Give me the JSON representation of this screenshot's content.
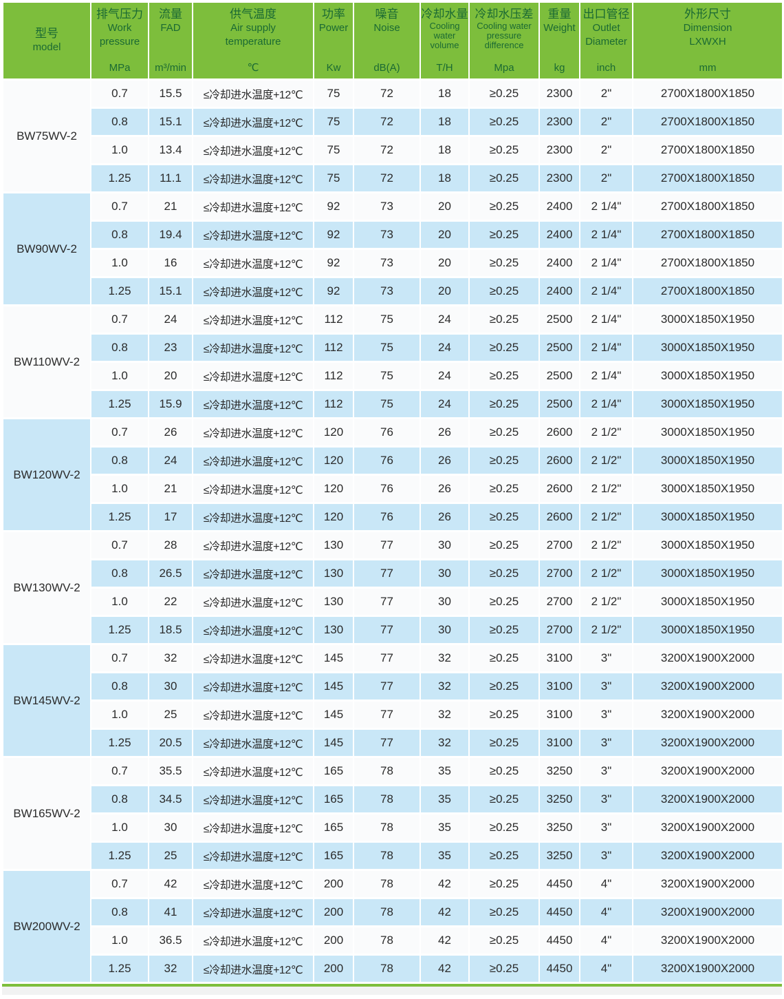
{
  "table": {
    "columns": [
      {
        "zh": "型号",
        "en": [
          "model"
        ],
        "unit": ""
      },
      {
        "zh": "排气压力",
        "en": [
          "Work",
          "pressure"
        ],
        "unit": "MPa"
      },
      {
        "zh": "流量",
        "en": [
          "FAD"
        ],
        "unit": "m³/min"
      },
      {
        "zh": "供气温度",
        "en": [
          "Air supply",
          "temperature"
        ],
        "unit": "℃"
      },
      {
        "zh": "功率",
        "en": [
          "Power"
        ],
        "unit": "Kw"
      },
      {
        "zh": "噪音",
        "en": [
          "Noise"
        ],
        "unit": "dB(A)"
      },
      {
        "zh": "冷却水量",
        "en": [
          "Cooling",
          "water",
          "volume"
        ],
        "unit": "T/H",
        "small": true
      },
      {
        "zh": "冷却水压差",
        "en": [
          "Cooling water",
          "pressure",
          "difference"
        ],
        "unit": "Mpa",
        "small": true
      },
      {
        "zh": "重量",
        "en": [
          "Weight"
        ],
        "unit": "kg"
      },
      {
        "zh": "出口管径",
        "en": [
          "Outlet",
          "Diameter"
        ],
        "unit": "inch"
      },
      {
        "zh": "外形尺寸",
        "en": [
          "Dimension",
          "LXWXH"
        ],
        "unit": "mm"
      }
    ],
    "groups": [
      {
        "model": "BW75WV-2",
        "rows": [
          [
            "0.7",
            "15.5",
            "≤冷却进水温度+12℃",
            "75",
            "72",
            "18",
            "≥0.25",
            "2300",
            "2\"",
            "2700X1800X1850"
          ],
          [
            "0.8",
            "15.1",
            "≤冷却进水温度+12℃",
            "75",
            "72",
            "18",
            "≥0.25",
            "2300",
            "2\"",
            "2700X1800X1850"
          ],
          [
            "1.0",
            "13.4",
            "≤冷却进水温度+12℃",
            "75",
            "72",
            "18",
            "≥0.25",
            "2300",
            "2\"",
            "2700X1800X1850"
          ],
          [
            "1.25",
            "11.1",
            "≤冷却进水温度+12℃",
            "75",
            "72",
            "18",
            "≥0.25",
            "2300",
            "2\"",
            "2700X1800X1850"
          ]
        ]
      },
      {
        "model": "BW90WV-2",
        "rows": [
          [
            "0.7",
            "21",
            "≤冷却进水温度+12℃",
            "92",
            "73",
            "20",
            "≥0.25",
            "2400",
            "2 1/4\"",
            "2700X1800X1850"
          ],
          [
            "0.8",
            "19.4",
            "≤冷却进水温度+12℃",
            "92",
            "73",
            "20",
            "≥0.25",
            "2400",
            "2 1/4\"",
            "2700X1800X1850"
          ],
          [
            "1.0",
            "16",
            "≤冷却进水温度+12℃",
            "92",
            "73",
            "20",
            "≥0.25",
            "2400",
            "2 1/4\"",
            "2700X1800X1850"
          ],
          [
            "1.25",
            "15.1",
            "≤冷却进水温度+12℃",
            "92",
            "73",
            "20",
            "≥0.25",
            "2400",
            "2 1/4\"",
            "2700X1800X1850"
          ]
        ]
      },
      {
        "model": "BW110WV-2",
        "rows": [
          [
            "0.7",
            "24",
            "≤冷却进水温度+12℃",
            "112",
            "75",
            "24",
            "≥0.25",
            "2500",
            "2 1/4\"",
            "3000X1850X1950"
          ],
          [
            "0.8",
            "23",
            "≤冷却进水温度+12℃",
            "112",
            "75",
            "24",
            "≥0.25",
            "2500",
            "2 1/4\"",
            "3000X1850X1950"
          ],
          [
            "1.0",
            "20",
            "≤冷却进水温度+12℃",
            "112",
            "75",
            "24",
            "≥0.25",
            "2500",
            "2 1/4\"",
            "3000X1850X1950"
          ],
          [
            "1.25",
            "15.9",
            "≤冷却进水温度+12℃",
            "112",
            "75",
            "24",
            "≥0.25",
            "2500",
            "2 1/4\"",
            "3000X1850X1950"
          ]
        ]
      },
      {
        "model": "BW120WV-2",
        "rows": [
          [
            "0.7",
            "26",
            "≤冷却进水温度+12℃",
            "120",
            "76",
            "26",
            "≥0.25",
            "2600",
            "2 1/2\"",
            "3000X1850X1950"
          ],
          [
            "0.8",
            "24",
            "≤冷却进水温度+12℃",
            "120",
            "76",
            "26",
            "≥0.25",
            "2600",
            "2 1/2\"",
            "3000X1850X1950"
          ],
          [
            "1.0",
            "21",
            "≤冷却进水温度+12℃",
            "120",
            "76",
            "26",
            "≥0.25",
            "2600",
            "2 1/2\"",
            "3000X1850X1950"
          ],
          [
            "1.25",
            "17",
            "≤冷却进水温度+12℃",
            "120",
            "76",
            "26",
            "≥0.25",
            "2600",
            "2 1/2\"",
            "3000X1850X1950"
          ]
        ]
      },
      {
        "model": "BW130WV-2",
        "rows": [
          [
            "0.7",
            "28",
            "≤冷却进水温度+12℃",
            "130",
            "77",
            "30",
            "≥0.25",
            "2700",
            "2 1/2\"",
            "3000X1850X1950"
          ],
          [
            "0.8",
            "26.5",
            "≤冷却进水温度+12℃",
            "130",
            "77",
            "30",
            "≥0.25",
            "2700",
            "2 1/2\"",
            "3000X1850X1950"
          ],
          [
            "1.0",
            "22",
            "≤冷却进水温度+12℃",
            "130",
            "77",
            "30",
            "≥0.25",
            "2700",
            "2 1/2\"",
            "3000X1850X1950"
          ],
          [
            "1.25",
            "18.5",
            "≤冷却进水温度+12℃",
            "130",
            "77",
            "30",
            "≥0.25",
            "2700",
            "2 1/2\"",
            "3000X1850X1950"
          ]
        ]
      },
      {
        "model": "BW145WV-2",
        "rows": [
          [
            "0.7",
            "32",
            "≤冷却进水温度+12℃",
            "145",
            "77",
            "32",
            "≥0.25",
            "3100",
            "3\"",
            "3200X1900X2000"
          ],
          [
            "0.8",
            "30",
            "≤冷却进水温度+12℃",
            "145",
            "77",
            "32",
            "≥0.25",
            "3100",
            "3\"",
            "3200X1900X2000"
          ],
          [
            "1.0",
            "25",
            "≤冷却进水温度+12℃",
            "145",
            "77",
            "32",
            "≥0.25",
            "3100",
            "3\"",
            "3200X1900X2000"
          ],
          [
            "1.25",
            "20.5",
            "≤冷却进水温度+12℃",
            "145",
            "77",
            "32",
            "≥0.25",
            "3100",
            "3\"",
            "3200X1900X2000"
          ]
        ]
      },
      {
        "model": "BW165WV-2",
        "rows": [
          [
            "0.7",
            "35.5",
            "≤冷却进水温度+12℃",
            "165",
            "78",
            "35",
            "≥0.25",
            "3250",
            "3\"",
            "3200X1900X2000"
          ],
          [
            "0.8",
            "34.5",
            "≤冷却进水温度+12℃",
            "165",
            "78",
            "35",
            "≥0.25",
            "3250",
            "3\"",
            "3200X1900X2000"
          ],
          [
            "1.0",
            "30",
            "≤冷却进水温度+12℃",
            "165",
            "78",
            "35",
            "≥0.25",
            "3250",
            "3\"",
            "3200X1900X2000"
          ],
          [
            "1.25",
            "25",
            "≤冷却进水温度+12℃",
            "165",
            "78",
            "35",
            "≥0.25",
            "3250",
            "3\"",
            "3200X1900X2000"
          ]
        ]
      },
      {
        "model": "BW200WV-2",
        "rows": [
          [
            "0.7",
            "42",
            "≤冷却进水温度+12℃",
            "200",
            "78",
            "42",
            "≥0.25",
            "4450",
            "4\"",
            "3200X1900X2000"
          ],
          [
            "0.8",
            "41",
            "≤冷却进水温度+12℃",
            "200",
            "78",
            "42",
            "≥0.25",
            "4450",
            "4\"",
            "3200X1900X2000"
          ],
          [
            "1.0",
            "36.5",
            "≤冷却进水温度+12℃",
            "200",
            "78",
            "42",
            "≥0.25",
            "4450",
            "4\"",
            "3200X1900X2000"
          ],
          [
            "1.25",
            "32",
            "≤冷却进水温度+12℃",
            "200",
            "78",
            "42",
            "≥0.25",
            "4450",
            "4\"",
            "3200X1900X2000"
          ]
        ]
      }
    ],
    "colors": {
      "header_green": "#7dbe3c",
      "header_text": "#1b6a33",
      "row_blue": "#c9e7f7",
      "row_white": "#fafbfc",
      "data_text": "#2b2b2b"
    }
  }
}
